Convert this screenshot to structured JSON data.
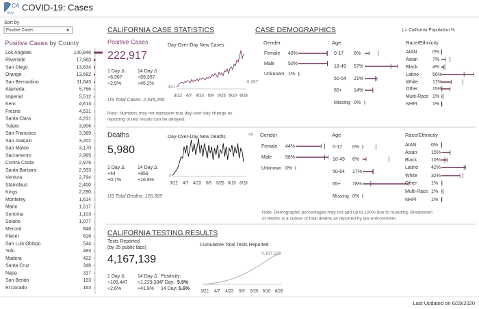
{
  "header": {
    "logo": [
      "CA",
      "GOV"
    ],
    "title": "COVID-19: Cases"
  },
  "sidebar": {
    "sort_label": "Sort by",
    "sort_value": "Positive Cases",
    "title_highlight": "Positive Cases",
    "title_rest": "by County",
    "counties": {
      "names": [
        "Los Angeles",
        "Riverside",
        "San Diego",
        "Orange",
        "San Bernardino",
        "Alameda",
        "Imperial",
        "Kern",
        "Fresno",
        "Santa Clara",
        "Tulare",
        "San Francisco",
        "San Joaquin",
        "San Mateo",
        "Sacramento",
        "Contra Costa",
        "Santa Barbara",
        "Ventura",
        "Stanislaus",
        "Kings",
        "Monterey",
        "Marin",
        "Sonoma",
        "Solano",
        "Merced",
        "Placer",
        "San Luis Obispo",
        "Yolo",
        "Madera",
        "Santa Cruz",
        "Napa",
        "San Benito",
        "El Dorado"
      ],
      "values": [
        100846,
        17683,
        13834,
        13682,
        11643,
        5766,
        5512,
        4613,
        4531,
        4231,
        3906,
        3389,
        3202,
        3170,
        2985,
        2976,
        2933,
        2794,
        2400,
        2280,
        1614,
        1517,
        1103,
        1077,
        848,
        628,
        544,
        483,
        422,
        348,
        317,
        193,
        163
      ],
      "value_labels": [
        "100,846",
        "17,683",
        "13,834",
        "13,682",
        "11,643",
        "5,766",
        "5,512",
        "4,613",
        "4,531",
        "4,231",
        "3,906",
        "3,389",
        "3,202",
        "3,170",
        "2,985",
        "2,976",
        "2,933",
        "2,794",
        "2,400",
        "2,280",
        "1,614",
        "1,517",
        "1,103",
        "1,077",
        "848",
        "628",
        "544",
        "483",
        "422",
        "348",
        "317",
        "193",
        "163"
      ]
    }
  },
  "cases": {
    "section_title": "CALIFORNIA CASE STATISTICS",
    "label": "Positive Cases",
    "total": "222,917",
    "one_day": {
      "label": "1 Day Δ",
      "count": "+6,367",
      "pct": "+2.9%"
    },
    "fourteen_day": {
      "label": "14 Day Δ",
      "count": "+69,357",
      "pct": "+45.2%"
    },
    "us_total": "US Total Cases: 2,545,250",
    "note": [
      "Note: Numbers may not represent true day-over-day change as",
      "reporting of test results can be delayed."
    ],
    "chart": {
      "title": "Day-Over-Day New Cases",
      "x_labels": [
        "3/22",
        "4/7",
        "4/23",
        "5/9",
        "5/25",
        "6/10",
        "6/26"
      ],
      "ylim": [
        0,
        7200
      ],
      "start_label": "331",
      "end_label": "6,367",
      "values": [
        331,
        500,
        900,
        1100,
        1200,
        1000,
        1300,
        1200,
        1500,
        1400,
        1100,
        1700,
        1300,
        1600,
        1500,
        1800,
        1400,
        1900,
        1700,
        2000,
        1800,
        1600,
        2100,
        1900,
        2200,
        2000,
        2600,
        2300,
        2800,
        2500,
        2100,
        3000,
        2600,
        2900,
        2400,
        3300,
        3100,
        3600,
        2800,
        3700,
        4000,
        3500,
        4500,
        4200,
        5200,
        4900,
        5800,
        7000,
        5500,
        6367
      ]
    }
  },
  "deaths": {
    "label": "Deaths",
    "total": "5,980",
    "one_day": {
      "label": "1 Day Δ",
      "count": "+44",
      "pct": "+0.7%"
    },
    "fourteen_day": {
      "label": "14 Day Δ",
      "count": "+859",
      "pct": "+16.8%"
    },
    "us_total": "US Total Deaths: 126,369",
    "chart": {
      "title": "Day-Over-Day New Deaths",
      "x_labels": [
        "3/22",
        "4/7",
        "4/23",
        "5/9",
        "5/25",
        "6/10",
        "6/26"
      ],
      "ylim": [
        0,
        120
      ],
      "start_label": "3",
      "end_label": "44",
      "values": [
        3,
        8,
        15,
        20,
        30,
        45,
        60,
        55,
        90,
        70,
        95,
        60,
        85,
        110,
        75,
        100,
        65,
        90,
        115,
        70,
        95,
        60,
        100,
        80,
        55,
        95,
        70,
        90,
        50,
        85,
        65,
        95,
        55,
        80,
        70,
        100,
        60,
        90,
        50,
        85,
        75,
        95,
        60,
        90,
        70,
        100,
        55,
        85,
        75,
        44
      ]
    }
  },
  "demographics": {
    "title": "CASE DEMOGRAPHICS",
    "legend": "| = California Population %",
    "cases": [
      {
        "title": "Gender",
        "categories": [
          "Female",
          "Male",
          "Unknown"
        ],
        "values": [
          49,
          50,
          1
        ],
        "value_labels": [
          "49%",
          "50%",
          "1%"
        ],
        "population": [
          50,
          50,
          null
        ]
      },
      {
        "title": "Age",
        "categories": [
          "0-17",
          "18-49",
          "50-64",
          "65+",
          "Missing"
        ],
        "values": [
          8,
          57,
          21,
          14,
          0
        ],
        "value_labels": [
          "8%",
          "57%",
          "21%",
          "14%",
          "0%"
        ],
        "population": [
          23,
          45,
          18,
          14,
          null
        ]
      },
      {
        "title": "Race/Ethnicity",
        "categories": [
          "AIAN",
          "Asian",
          "Black",
          "Latino",
          "White",
          "Other",
          "Multi-Race",
          "NHPI"
        ],
        "values": [
          0,
          7,
          4,
          56,
          17,
          15,
          1,
          1
        ],
        "value_labels": [
          "0%",
          "7%",
          "4%",
          "56%",
          "17%",
          "15%",
          "1%",
          "1%"
        ],
        "population": [
          0.5,
          15,
          6,
          39,
          37,
          1,
          3,
          0.3
        ]
      }
    ],
    "deaths": [
      {
        "title": "Gender",
        "categories": [
          "Female",
          "Male",
          "Unknown"
        ],
        "values": [
          44,
          56,
          0
        ],
        "value_labels": [
          "44%",
          "56%",
          "0%"
        ],
        "population": [
          50,
          50,
          null
        ]
      },
      {
        "title": "Age",
        "categories": [
          "0-17",
          "18-49",
          "50-64",
          "65+",
          "Missing"
        ],
        "values": [
          0,
          6,
          17,
          78,
          0
        ],
        "value_labels": [
          "0%",
          "6%",
          "17%",
          "78%",
          "0%"
        ],
        "population": [
          23,
          45,
          18,
          14,
          null
        ]
      },
      {
        "title": "Race/Ethnicity",
        "categories": [
          "AIAN",
          "Asian",
          "Black",
          "Latino",
          "White",
          "Other",
          "Multi-Race",
          "NHPI"
        ],
        "values": [
          0,
          15,
          10,
          42,
          32,
          1,
          1,
          1
        ],
        "value_labels": [
          "0%",
          "15%",
          "10%",
          "42%",
          "32%",
          "1%",
          "1%",
          "1%"
        ],
        "population": [
          0.5,
          15,
          6,
          39,
          37,
          1,
          3,
          0.3
        ]
      }
    ],
    "note": [
      "Note: Demographic percentages may not add up to 100% due to rounding. Breakdown",
      "of deaths is a subset of total deaths as reported by law enforcement."
    ]
  },
  "testing": {
    "section_title": "CALIFORNIA TESTING RESULTS",
    "label": "Tests Reported",
    "sublabel": "(by 25 public labs)",
    "total": "4,167,139",
    "one_day": {
      "label": "1 Day Δ",
      "count": "+105,447",
      "pct": "+2.6%"
    },
    "fourteen_day": {
      "label": "14 Day Δ",
      "count": "+1,229,384",
      "pct": "+41.8%"
    },
    "positivity": {
      "label": "Positivity:",
      "seven_day_label": "7 Day:",
      "seven_day": "5.9%",
      "fourteen_day_label": "14 Day:",
      "fourteen_day": "5.6%"
    },
    "chart": {
      "title": "Cumulative Total Tests Reported",
      "x_labels": [
        "3/22",
        "4/7",
        "4/23",
        "5/9",
        "5/25",
        "6/10",
        "6/26"
      ],
      "ylim": [
        0,
        4500000
      ],
      "end_label": "4,167,139",
      "values": [
        20000,
        30000,
        50000,
        70000,
        90000,
        110000,
        140000,
        170000,
        200000,
        230000,
        270000,
        310000,
        360000,
        410000,
        460000,
        520000,
        580000,
        640000,
        710000,
        780000,
        860000,
        940000,
        1020000,
        1110000,
        1200000,
        1300000,
        1400000,
        1500000,
        1610000,
        1720000,
        1840000,
        1960000,
        2080000,
        2200000,
        2330000,
        2460000,
        2590000,
        2720000,
        2860000,
        3000000,
        3140000,
        3280000,
        3420000,
        3560000,
        3700000,
        3820000,
        3930000,
        4020000,
        4100000,
        4167139
      ]
    }
  },
  "footer": "Last Updated on 6/29/2020"
}
